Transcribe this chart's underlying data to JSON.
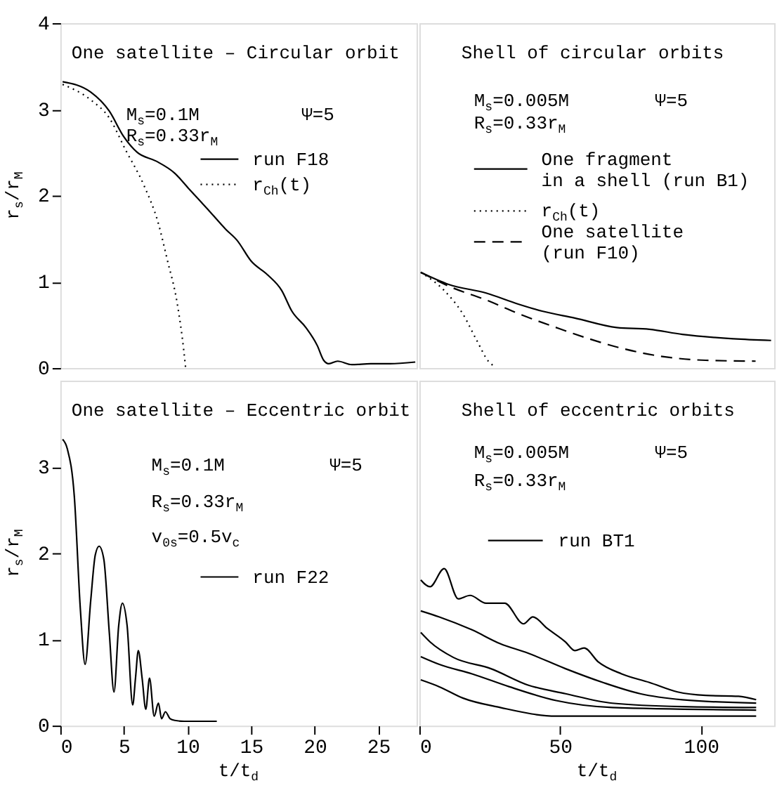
{
  "chart_data": [
    {
      "type": "line",
      "title": "One satellite – Circular orbit",
      "ylabel": "r$_{s}$/r$_{M}$",
      "xlim": [
        0,
        28
      ],
      "ylim": [
        0,
        4
      ],
      "xticks": [
        0,
        5,
        10,
        15,
        20,
        25
      ],
      "yticks": [
        0,
        1,
        2,
        3,
        4
      ],
      "tick_labels": "y",
      "grid": false,
      "legend": "top right",
      "annotations": [
        "M$_{s}$=0.1M",
        "Ψ=5",
        "R$_{s}$=0.33r$_{M}$"
      ],
      "series": [
        {
          "name": "run F18",
          "color": "#000000",
          "line_style": "solid",
          "x": [
            0.18,
            2.39,
            3.85,
            4.96,
            6.06,
            7.53,
            8.99,
            10.1,
            11.6,
            13.0,
            13.9,
            15.0,
            16.3,
            17.4,
            18.2,
            19.3,
            20.2,
            20.7,
            21.1,
            21.8,
            22.9,
            24.4,
            25.9,
            27.9
          ],
          "values": [
            3.32,
            3.2,
            2.98,
            2.69,
            2.5,
            2.4,
            2.26,
            2.08,
            1.84,
            1.61,
            1.48,
            1.24,
            1.08,
            0.9,
            0.66,
            0.47,
            0.26,
            0.09,
            0.05,
            0.08,
            0.04,
            0.05,
            0.05,
            0.07
          ]
        },
        {
          "name": "r$_{Ch}$(t)",
          "color": "#000000",
          "line_style": "dotted",
          "x": [
            0.18,
            2.39,
            3.85,
            5.13,
            6.6,
            7.7,
            8.4,
            9.2,
            9.7,
            9.85
          ],
          "values": [
            3.29,
            3.11,
            2.9,
            2.53,
            2.11,
            1.68,
            1.26,
            0.74,
            0.21,
            0
          ]
        }
      ]
    },
    {
      "type": "line",
      "title": "Shell of circular orbits",
      "xlim": [
        0,
        126
      ],
      "ylim": [
        0,
        4
      ],
      "xticks": [
        0,
        50,
        100
      ],
      "yticks": [
        0,
        1,
        2,
        3,
        4
      ],
      "tick_labels": false,
      "grid": false,
      "legend": "right",
      "annotations": [
        "M$_{s}$=0.005M",
        "Ψ=5",
        "R$_{s}$=0.33r$_{M}$"
      ],
      "series": [
        {
          "name": "One fragment\nin a shell (run B1)",
          "color": "#000000",
          "line_style": "solid",
          "x": [
            0.5,
            10.4,
            23.7,
            35.3,
            43.6,
            55.2,
            70.1,
            81.7,
            93.4,
            111.6,
            124.9
          ],
          "values": [
            1.11,
            0.97,
            0.87,
            0.74,
            0.66,
            0.58,
            0.47,
            0.45,
            0.39,
            0.34,
            0.32
          ]
        },
        {
          "name": "r$_{Ch}$(t)",
          "color": "#000000",
          "line_style": "dotted",
          "x": [
            0.5,
            8.8,
            15.4,
            20.4,
            24.5,
            26.2
          ],
          "values": [
            1.11,
            0.9,
            0.63,
            0.32,
            0.08,
            0.03
          ]
        },
        {
          "name": "One satellite\n(run F10)",
          "color": "#000000",
          "line_style": "dashed",
          "x": [
            0.5,
            10.4,
            23.7,
            35.3,
            48.6,
            60.2,
            71.8,
            85.1,
            101.7,
            119.4
          ],
          "values": [
            1.11,
            0.95,
            0.79,
            0.63,
            0.47,
            0.34,
            0.23,
            0.14,
            0.09,
            0.08
          ]
        }
      ]
    },
    {
      "type": "line",
      "title": "One satellite – Eccentric orbit",
      "xlabel": "t/t$_{d}$",
      "ylabel": "r$_{s}$/r$_{M}$",
      "xlim": [
        0,
        28
      ],
      "ylim": [
        0,
        4
      ],
      "xticks": [
        0,
        5,
        10,
        15,
        20,
        25
      ],
      "yticks": [
        0,
        1,
        2,
        3
      ],
      "grid": false,
      "legend": "right",
      "annotations": [
        "M$_{s}$=0.1M",
        "Ψ=5",
        "R$_{s}$=0.33r$_{M}$",
        "v$_{0s}$=0.5v$_{c}$"
      ],
      "series": [
        {
          "name": "run F22",
          "color": "#000000",
          "line_style": "solid",
          "x": [
            0.18,
            0.55,
            1.1,
            1.58,
            1.95,
            2.39,
            2.75,
            3.05,
            3.42,
            3.85,
            4.22,
            4.59,
            4.88,
            5.25,
            5.69,
            5.91,
            6.13,
            6.43,
            6.72,
            7.01,
            7.38,
            7.71,
            7.96,
            8.26,
            8.63,
            9.0,
            9.73,
            12.3
          ],
          "values": [
            3.32,
            3.21,
            2.66,
            1.34,
            0.71,
            1.45,
            1.98,
            2.08,
            1.93,
            1.08,
            0.39,
            1.16,
            1.42,
            1.16,
            0.24,
            0.55,
            0.87,
            0.55,
            0.19,
            0.55,
            0.11,
            0.26,
            0.08,
            0.16,
            0.08,
            0.06,
            0.05,
            0.05
          ]
        }
      ]
    },
    {
      "type": "line",
      "title": "Shell of eccentric orbits",
      "xlabel": "t/t$_{d}$",
      "xlim": [
        0,
        126
      ],
      "ylim": [
        0,
        4
      ],
      "xticks": [
        0,
        50,
        100
      ],
      "yticks": [
        0,
        1,
        2,
        3,
        4
      ],
      "tick_labels": "x",
      "grid": false,
      "legend": "top left",
      "annotations": [
        "M$_{s}$=0.005M",
        "Ψ=5",
        "R$_{s}$=0.33r$_{M}$"
      ],
      "series": [
        {
          "name": "run BT1",
          "color": "#000000",
          "line_style": "solid",
          "x": [
            0.5,
            3.8,
            8.8,
            13.8,
            18.0,
            23.7,
            30.3,
            37,
            40.3,
            45.3,
            51.9,
            55.2,
            58.5,
            63.5,
            71.8,
            81.7,
            91.7,
            101.7,
            113.3,
            119.6
          ],
          "values": [
            1.69,
            1.61,
            1.82,
            1.47,
            1.51,
            1.42,
            1.42,
            1.18,
            1.26,
            1.13,
            0.97,
            0.87,
            0.9,
            0.74,
            0.6,
            0.5,
            0.39,
            0.35,
            0.34,
            0.3
          ]
        },
        {
          "color": "#000000",
          "line_style": "solid",
          "x": [
            0.5,
            7.1,
            18.7,
            28.7,
            38.6,
            51.9,
            65.2,
            78.4,
            93.4,
            119.6
          ],
          "values": [
            1.33,
            1.26,
            1.11,
            0.95,
            0.84,
            0.66,
            0.5,
            0.37,
            0.3,
            0.26
          ]
        },
        {
          "color": "#000000",
          "line_style": "solid",
          "x": [
            0.5,
            3.8,
            12.1,
            25.4,
            38.6,
            51.9,
            68.5,
            93.4,
            119.6
          ],
          "values": [
            1.08,
            0.97,
            0.79,
            0.66,
            0.47,
            0.37,
            0.26,
            0.22,
            0.21
          ]
        },
        {
          "color": "#000000",
          "line_style": "solid",
          "x": [
            0.5,
            7.1,
            18.7,
            32,
            48.6,
            68.5,
            119.6
          ],
          "values": [
            0.8,
            0.71,
            0.6,
            0.45,
            0.29,
            0.21,
            0.18
          ]
        },
        {
          "color": "#000000",
          "line_style": "solid",
          "x": [
            0.5,
            7.1,
            15.4,
            28.7,
            48.6,
            68.5,
            119.6
          ],
          "values": [
            0.53,
            0.45,
            0.32,
            0.21,
            0.11,
            0.11,
            0.11
          ]
        }
      ]
    }
  ]
}
